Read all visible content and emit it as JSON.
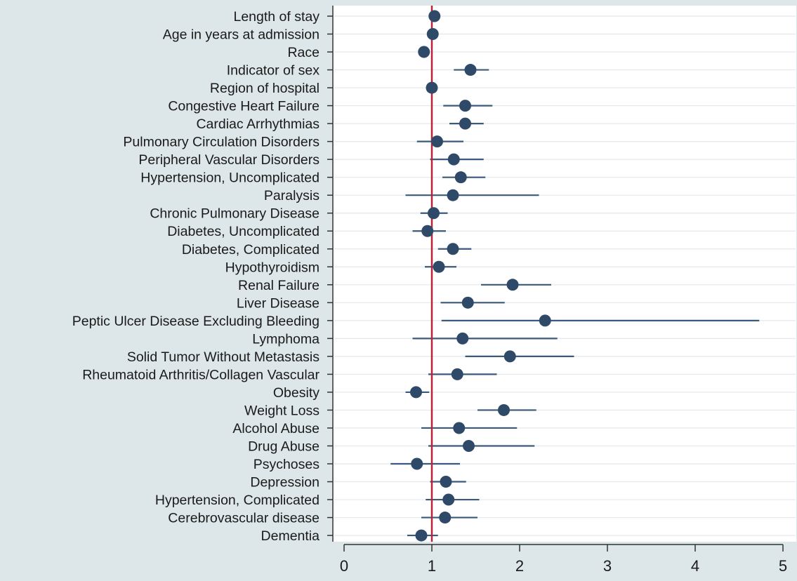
{
  "chart_data": {
    "type": "forest",
    "title": "",
    "xlabel": "",
    "ylabel": "",
    "xlim": [
      0,
      5
    ],
    "xticks": [
      0,
      1,
      2,
      3,
      4,
      5
    ],
    "xtick_labels": [
      "0",
      "1",
      "2",
      "3",
      "4",
      "5"
    ],
    "reference_line": 1,
    "grid": "horizontal",
    "colors": {
      "background": "#dde7e9",
      "plot_background": "#ffffff",
      "marker": "#2e4a68",
      "interval": "#3a5a7c",
      "reference_line": "#b5243b",
      "grid": "#e2e8ec"
    },
    "categories": [
      "Length of stay",
      "Age in years at admission",
      "Race",
      "Indicator of sex",
      "Region of hospital",
      "Congestive Heart Failure",
      "Cardiac Arrhythmias",
      "Pulmonary Circulation Disorders",
      "Peripheral Vascular Disorders",
      "Hypertension, Uncomplicated",
      "Paralysis",
      "Chronic Pulmonary Disease",
      "Diabetes, Uncomplicated",
      "Diabetes, Complicated",
      "Hypothyroidism",
      "Renal Failure",
      "Liver Disease",
      "Peptic Ulcer Disease Excluding Bleeding",
      "Lymphoma",
      "Solid Tumor Without Metastasis",
      "Rheumatoid Arthritis/Collagen Vascular",
      "Obesity",
      "Weight Loss",
      "Alcohol Abuse",
      "Drug Abuse",
      "Psychoses",
      "Depression",
      "Hypertension, Complicated",
      "Cerebrovascular disease",
      "Dementia"
    ],
    "estimates": [
      1.03,
      1.01,
      0.91,
      1.44,
      1.0,
      1.38,
      1.38,
      1.06,
      1.25,
      1.33,
      1.24,
      1.02,
      0.95,
      1.24,
      1.08,
      1.92,
      1.41,
      2.29,
      1.35,
      1.89,
      1.29,
      0.82,
      1.82,
      1.31,
      1.42,
      0.83,
      1.16,
      1.19,
      1.15,
      0.88
    ],
    "lower": [
      1.02,
      1.0,
      0.88,
      1.25,
      0.98,
      1.13,
      1.2,
      0.83,
      0.98,
      1.12,
      0.7,
      0.87,
      0.78,
      1.07,
      0.92,
      1.56,
      1.1,
      1.11,
      0.78,
      1.38,
      0.96,
      0.7,
      1.52,
      0.88,
      0.96,
      0.53,
      0.98,
      0.93,
      0.88,
      0.72
    ],
    "upper": [
      1.05,
      1.03,
      0.94,
      1.65,
      1.02,
      1.69,
      1.59,
      1.36,
      1.59,
      1.61,
      2.22,
      1.18,
      1.16,
      1.45,
      1.28,
      2.36,
      1.83,
      4.73,
      2.43,
      2.62,
      1.74,
      0.97,
      2.19,
      1.97,
      2.17,
      1.32,
      1.39,
      1.54,
      1.52,
      1.07
    ]
  }
}
